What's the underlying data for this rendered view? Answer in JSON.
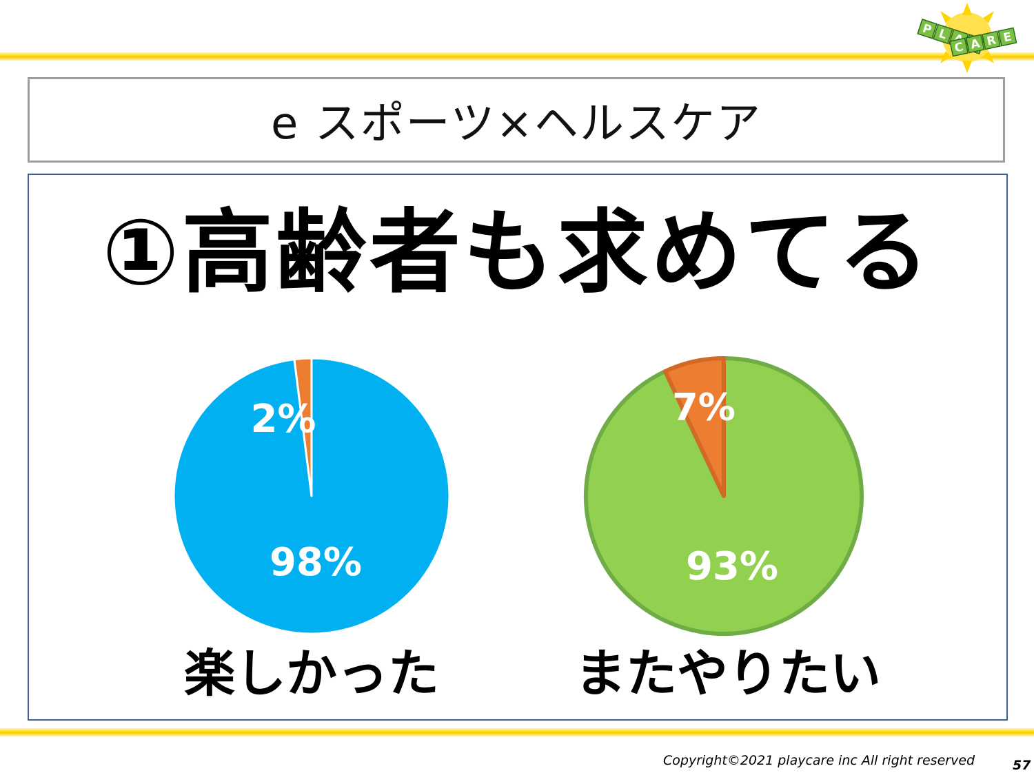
{
  "slide": {
    "title": "e スポーツ×ヘルスケア",
    "headline": "①高齢者も求めてる",
    "copyright": "Copyright©2021  playcare inc All  right  reserved",
    "page_number": "57"
  },
  "logo": {
    "line1": [
      "P",
      "L",
      "A",
      "Y"
    ],
    "line2": [
      "C",
      "A",
      "R",
      "E"
    ]
  },
  "chart_data": [
    {
      "type": "pie",
      "caption": "楽しかった",
      "slices": [
        {
          "label": "98%",
          "value": 98,
          "color": "#00b0f0"
        },
        {
          "label": "2%",
          "value": 2,
          "color": "#ed7d31"
        }
      ]
    },
    {
      "type": "pie",
      "caption": "またやりたい",
      "slices": [
        {
          "label": "93%",
          "value": 93,
          "color": "#92d050"
        },
        {
          "label": "7%",
          "value": 7,
          "color": "#ed7d31"
        }
      ]
    }
  ]
}
